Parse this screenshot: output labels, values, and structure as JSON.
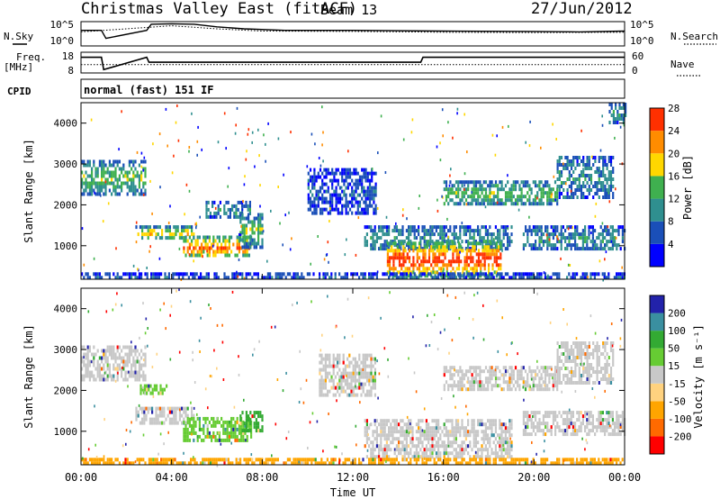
{
  "header": {
    "title": "Christmas Valley East (fitACF)",
    "beam": "Beam 13",
    "date": "27/Jun/2012"
  },
  "side_labels": {
    "nsky": "N.Sky",
    "nsearch": "N.Search",
    "freq": "Freq.",
    "freq_unit": "[MHz]",
    "nave": "Nave",
    "cpid": "CPID"
  },
  "cpid_text": "normal (fast) 151 IF",
  "chart_data": [
    {
      "type": "line",
      "name": "noise",
      "y_ticks_left": [
        "10^5",
        "10^0"
      ],
      "y_ticks_right": [
        "10^5",
        "10^0"
      ],
      "series": [
        {
          "name": "N.Sky",
          "x_hours": [
            0,
            0.9,
            1.1,
            2.9,
            3.1,
            4.0,
            5.0,
            6.0,
            7.2,
            9,
            12,
            16,
            20,
            22,
            24
          ],
          "y_log10": [
            3.6,
            3.6,
            1.5,
            3.6,
            5.2,
            5.3,
            5.2,
            4.5,
            4.0,
            3.6,
            3.6,
            3.4,
            3.3,
            3.2,
            3.4
          ]
        },
        {
          "name": "N.Search",
          "x_hours": [
            0,
            4,
            6,
            8,
            12,
            16,
            20,
            24
          ],
          "y_log10": [
            3.2,
            4.8,
            4.0,
            3.4,
            3.3,
            3.1,
            3.0,
            3.1
          ]
        }
      ]
    },
    {
      "type": "line",
      "name": "frequency-nave",
      "y_ticks_left": [
        "18",
        "8"
      ],
      "y_ticks_right": [
        "60",
        "0"
      ],
      "series": [
        {
          "name": "Freq.",
          "x_hours": [
            0,
            0.9,
            1.0,
            2.9,
            3.0,
            15.0,
            15.1,
            24
          ],
          "y": [
            16,
            16,
            8.5,
            16,
            13,
            13,
            16,
            16
          ]
        },
        {
          "name": "Nave",
          "x_hours": [
            0,
            24
          ],
          "y": [
            25,
            25
          ]
        }
      ]
    },
    {
      "type": "heatmap",
      "name": "power",
      "ylabel": "Slant Range [km]",
      "y_ticks": [
        1000,
        2000,
        3000,
        4000
      ],
      "ylim": [
        180,
        4500
      ],
      "colorbar_label": "Power [dB]",
      "colorbar_ticks": [
        4,
        8,
        12,
        16,
        20,
        24,
        28
      ],
      "colors": [
        "#0000ff",
        "#1a4fb8",
        "#2f8f8f",
        "#3fb04f",
        "#ffd700",
        "#ff8c00",
        "#ff3000"
      ],
      "regions": [
        {
          "t0": 0.0,
          "t1": 2.8,
          "r0": 2300,
          "r1": 3100,
          "level": 3
        },
        {
          "t0": 2.4,
          "t1": 5.0,
          "r0": 1200,
          "r1": 1500,
          "level": 4
        },
        {
          "t0": 4.5,
          "t1": 7.5,
          "r0": 750,
          "r1": 1250,
          "level": 5
        },
        {
          "t0": 5.5,
          "t1": 7.5,
          "r0": 1700,
          "r1": 2100,
          "level": 2
        },
        {
          "t0": 7.0,
          "t1": 8.0,
          "r0": 1000,
          "r1": 1800,
          "level": 3
        },
        {
          "t0": 10.0,
          "t1": 13.0,
          "r0": 1800,
          "r1": 2900,
          "level": 1
        },
        {
          "t0": 12.5,
          "t1": 19.0,
          "r0": 900,
          "r1": 1500,
          "level": 2
        },
        {
          "t0": 13.5,
          "t1": 18.5,
          "r0": 300,
          "r1": 1100,
          "level": 6
        },
        {
          "t0": 16.0,
          "t1": 21.0,
          "r0": 2000,
          "r1": 2600,
          "level": 3
        },
        {
          "t0": 21.0,
          "t1": 23.5,
          "r0": 2200,
          "r1": 3200,
          "level": 2
        },
        {
          "t0": 19.5,
          "t1": 24.0,
          "r0": 900,
          "r1": 1500,
          "level": 2
        },
        {
          "t0": 0.0,
          "t1": 24.0,
          "r0": 180,
          "r1": 350,
          "level": 1
        },
        {
          "t0": 23.3,
          "t1": 24.0,
          "r0": 4000,
          "r1": 4500,
          "level": 2
        }
      ]
    },
    {
      "type": "heatmap",
      "name": "velocity",
      "ylabel": "Slant Range [km]",
      "xlabel": "Time UT",
      "x_ticks": [
        "00:00",
        "04:00",
        "08:00",
        "12:00",
        "16:00",
        "20:00",
        "00:00"
      ],
      "y_ticks": [
        1000,
        2000,
        3000,
        4000
      ],
      "ylim": [
        180,
        4500
      ],
      "colorbar_label": "Velocity [m s⁻¹]",
      "colorbar_ticks": [
        "-200",
        "-100",
        "-50",
        "-15",
        "15",
        "50",
        "100",
        "200"
      ],
      "colors": [
        "#ff0000",
        "#ff6a00",
        "#ffa500",
        "#ffd27f",
        "#c8c8c8",
        "#66cc33",
        "#33aa33",
        "#3a8fa0",
        "#2222aa"
      ],
      "regions": [
        {
          "t0": 0.0,
          "t1": 2.8,
          "r0": 2300,
          "r1": 3100,
          "level": 4
        },
        {
          "t0": 2.6,
          "t1": 3.8,
          "r0": 1900,
          "r1": 2150,
          "level": 5
        },
        {
          "t0": 2.4,
          "t1": 5.0,
          "r0": 1200,
          "r1": 1600,
          "level": 4
        },
        {
          "t0": 4.5,
          "t1": 7.5,
          "r0": 750,
          "r1": 1350,
          "level": 5
        },
        {
          "t0": 7.0,
          "t1": 8.0,
          "r0": 1000,
          "r1": 1500,
          "level": 6
        },
        {
          "t0": 10.5,
          "t1": 13.0,
          "r0": 1900,
          "r1": 2900,
          "level": 4
        },
        {
          "t0": 12.5,
          "t1": 19.0,
          "r0": 400,
          "r1": 1300,
          "level": 4
        },
        {
          "t0": 16.0,
          "t1": 21.0,
          "r0": 2000,
          "r1": 2600,
          "level": 4
        },
        {
          "t0": 21.0,
          "t1": 23.5,
          "r0": 2200,
          "r1": 3200,
          "level": 4
        },
        {
          "t0": 19.5,
          "t1": 24.0,
          "r0": 900,
          "r1": 1500,
          "level": 4
        },
        {
          "t0": 0.0,
          "t1": 24.0,
          "r0": 180,
          "r1": 350,
          "level": 2
        }
      ]
    }
  ]
}
